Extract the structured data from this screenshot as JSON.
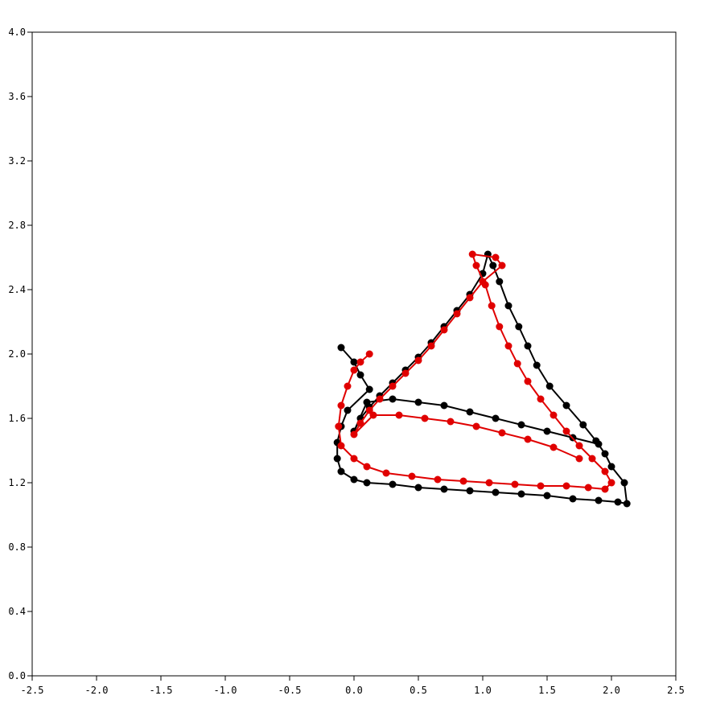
{
  "chart_data": {
    "type": "scatter",
    "title": "",
    "xlabel": "",
    "ylabel": "",
    "xlim": [
      -2.5,
      2.5
    ],
    "ylim": [
      0.0,
      4.0
    ],
    "grid": false,
    "legend": "none",
    "x_ticks": [
      "-2.5",
      "-2.0",
      "-1.5",
      "-1.0",
      "-0.5",
      "0.0",
      "0.5",
      "1.0",
      "1.5",
      "2.0",
      "2.5"
    ],
    "y_ticks": [
      "0.0",
      "0.4",
      "0.8",
      "1.2",
      "1.6",
      "2.0",
      "2.4",
      "2.8",
      "3.2",
      "3.6",
      "4.0"
    ],
    "series": [
      {
        "color": "#000000",
        "x": [
          -0.1,
          0.0,
          0.05,
          0.12,
          -0.05,
          -0.1,
          -0.13,
          -0.13,
          -0.1,
          0.0,
          0.1,
          0.3,
          0.5,
          0.7,
          0.9,
          1.1,
          1.3,
          1.5,
          1.7,
          1.9,
          2.05,
          2.12,
          2.1,
          2.0,
          1.95,
          1.88,
          1.78,
          1.65,
          1.52,
          1.42,
          1.35,
          1.28,
          1.2,
          1.13,
          1.08,
          1.04,
          1.0,
          0.9,
          0.8,
          0.7,
          0.6,
          0.5,
          0.4,
          0.3,
          0.2,
          0.12,
          0.05,
          0.0,
          0.1,
          0.3,
          0.5,
          0.7,
          0.9,
          1.1,
          1.3,
          1.5,
          1.7,
          1.9
        ],
        "y": [
          2.04,
          1.95,
          1.87,
          1.78,
          1.65,
          1.55,
          1.45,
          1.35,
          1.27,
          1.22,
          1.2,
          1.19,
          1.17,
          1.16,
          1.15,
          1.14,
          1.13,
          1.12,
          1.1,
          1.09,
          1.08,
          1.07,
          1.2,
          1.3,
          1.38,
          1.46,
          1.56,
          1.68,
          1.8,
          1.93,
          2.05,
          2.17,
          2.3,
          2.45,
          2.55,
          2.62,
          2.5,
          2.37,
          2.27,
          2.17,
          2.07,
          1.98,
          1.9,
          1.82,
          1.74,
          1.67,
          1.6,
          1.52,
          1.7,
          1.72,
          1.7,
          1.68,
          1.64,
          1.6,
          1.56,
          1.52,
          1.48,
          1.44
        ]
      },
      {
        "color": "#e00000",
        "x": [
          0.12,
          0.05,
          0.0,
          -0.05,
          -0.1,
          -0.12,
          -0.1,
          0.0,
          0.1,
          0.25,
          0.45,
          0.65,
          0.85,
          1.05,
          1.25,
          1.45,
          1.65,
          1.82,
          1.95,
          2.0,
          1.95,
          1.85,
          1.75,
          1.65,
          1.55,
          1.45,
          1.35,
          1.27,
          1.2,
          1.13,
          1.07,
          1.02,
          0.95,
          0.92,
          1.1,
          1.15,
          1.0,
          0.9,
          0.8,
          0.7,
          0.6,
          0.5,
          0.4,
          0.3,
          0.2,
          0.12,
          0.05,
          0.0,
          0.15,
          0.35,
          0.55,
          0.75,
          0.95,
          1.15,
          1.35,
          1.55,
          1.75
        ],
        "y": [
          2.0,
          1.95,
          1.9,
          1.8,
          1.68,
          1.55,
          1.43,
          1.35,
          1.3,
          1.26,
          1.24,
          1.22,
          1.21,
          1.2,
          1.19,
          1.18,
          1.18,
          1.17,
          1.16,
          1.2,
          1.27,
          1.35,
          1.43,
          1.52,
          1.62,
          1.72,
          1.83,
          1.94,
          2.05,
          2.17,
          2.3,
          2.43,
          2.55,
          2.62,
          2.6,
          2.55,
          2.45,
          2.35,
          2.25,
          2.15,
          2.05,
          1.96,
          1.88,
          1.8,
          1.72,
          1.65,
          1.57,
          1.5,
          1.62,
          1.62,
          1.6,
          1.58,
          1.55,
          1.51,
          1.47,
          1.42,
          1.35
        ]
      }
    ]
  }
}
